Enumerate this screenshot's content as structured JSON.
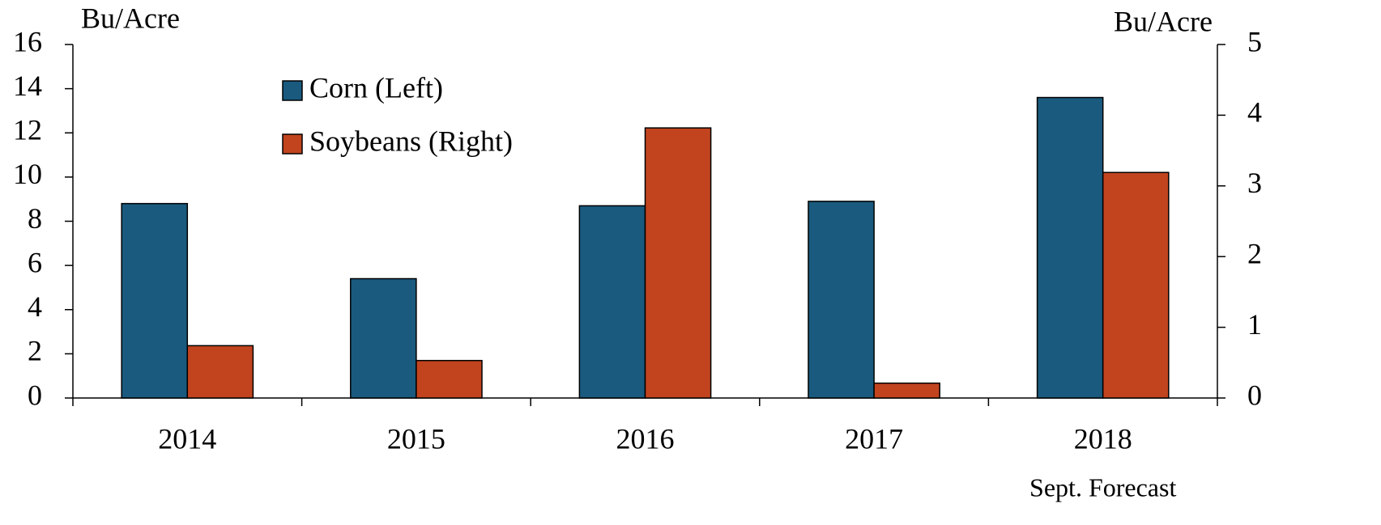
{
  "chart_data": {
    "type": "bar",
    "y_label": "Bu/Acre",
    "y2_label": "Bu/Acre",
    "categories": [
      "2014",
      "2015",
      "2016",
      "2017",
      "2018"
    ],
    "annotation": "Sept. Forecast",
    "series": [
      {
        "name": "Corn (Left)",
        "color": "#1a5a7e",
        "values": [
          8.8,
          5.4,
          8.7,
          8.9,
          13.6
        ]
      },
      {
        "name": "Soybeans (Right)",
        "color": "#c1441f",
        "axis": "y2",
        "values": [
          0.74,
          0.53,
          3.82,
          0.21,
          3.19
        ]
      }
    ],
    "ylim": [
      0,
      16
    ],
    "yticks": [
      0,
      2,
      4,
      6,
      8,
      10,
      12,
      14,
      16
    ],
    "y2lim": [
      0,
      5
    ],
    "y2ticks": [
      0,
      1,
      2,
      3,
      4,
      5
    ],
    "grid": false
  }
}
